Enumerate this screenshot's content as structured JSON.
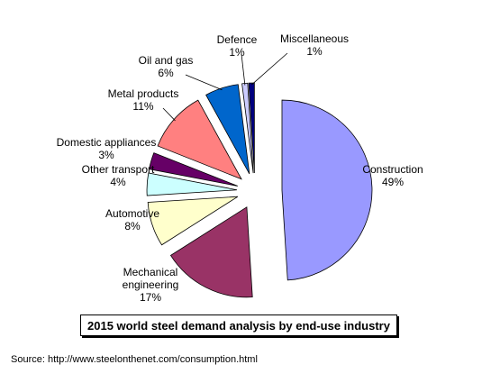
{
  "chart_data": {
    "type": "pie",
    "title": "2015 world steel demand analysis by end-use industry",
    "source": "Source: http://www.steelonthenet.com/consumption.html",
    "exploded": true,
    "slices": [
      {
        "label": "Construction",
        "value": 49,
        "value_label": "49%",
        "color": "#9999ff"
      },
      {
        "label": "Mechanical engineering",
        "label_lines": [
          "Mechanical",
          "engineering"
        ],
        "value": 17,
        "value_label": "17%",
        "color": "#993366"
      },
      {
        "label": "Automotive",
        "value": 8,
        "value_label": "8%",
        "color": "#ffffcc"
      },
      {
        "label": "Other transport",
        "value": 4,
        "value_label": "4%",
        "color": "#ccffff"
      },
      {
        "label": "Domestic appliances",
        "value": 3,
        "value_label": "3%",
        "color": "#660066"
      },
      {
        "label": "Metal products",
        "value": 11,
        "value_label": "11%",
        "color": "#ff8080"
      },
      {
        "label": "Oil and gas",
        "value": 6,
        "value_label": "6%",
        "color": "#0066cc"
      },
      {
        "label": "Defence",
        "value": 1,
        "value_label": "1%",
        "color": "#ccccff"
      },
      {
        "label": "Miscellaneous",
        "value": 1,
        "value_label": "1%",
        "color": "#000080"
      }
    ]
  }
}
